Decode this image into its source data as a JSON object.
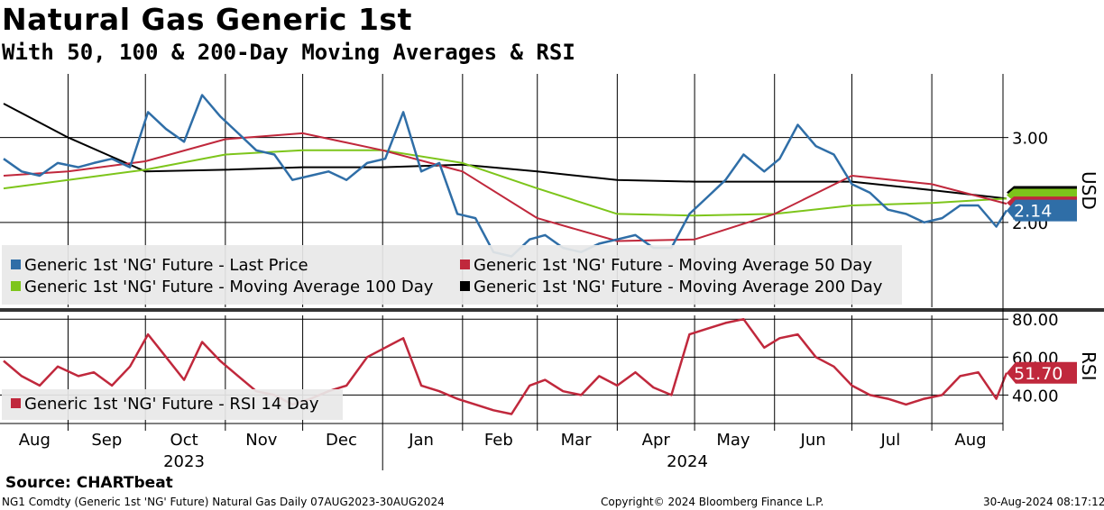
{
  "header": {
    "title": "Natural Gas Generic 1st",
    "subtitle": "With 50, 100 & 200-Day Moving Averages & RSI"
  },
  "chart_data": [
    {
      "type": "line",
      "ylabel": "USD",
      "ylim": [
        1.0,
        3.75
      ],
      "yticks": [
        3.0,
        2.0
      ],
      "ytick_labels": [
        "3.00",
        "2.00"
      ],
      "grid": true,
      "legend_position": "bottom-left",
      "last_value_label": "2.14",
      "x_months": [
        "Aug",
        "Sep",
        "Oct",
        "Nov",
        "Dec",
        "Jan",
        "Feb",
        "Mar",
        "Apr",
        "May",
        "Jun",
        "Jul",
        "Aug"
      ],
      "x_years": [
        "2023",
        "2024"
      ],
      "series": [
        {
          "name": "Generic 1st 'NG' Future - Last Price",
          "color": "#2f6ea7",
          "x": [
            "2023-08-07",
            "2023-08-14",
            "2023-08-21",
            "2023-08-28",
            "2023-09-05",
            "2023-09-11",
            "2023-09-18",
            "2023-09-25",
            "2023-10-02",
            "2023-10-09",
            "2023-10-16",
            "2023-10-23",
            "2023-10-30",
            "2023-11-06",
            "2023-11-13",
            "2023-11-20",
            "2023-11-27",
            "2023-12-04",
            "2023-12-11",
            "2023-12-18",
            "2023-12-26",
            "2024-01-02",
            "2024-01-09",
            "2024-01-16",
            "2024-01-23",
            "2024-01-30",
            "2024-02-06",
            "2024-02-13",
            "2024-02-20",
            "2024-02-27",
            "2024-03-04",
            "2024-03-11",
            "2024-03-18",
            "2024-03-25",
            "2024-04-01",
            "2024-04-08",
            "2024-04-15",
            "2024-04-22",
            "2024-04-29",
            "2024-05-06",
            "2024-05-13",
            "2024-05-20",
            "2024-05-28",
            "2024-06-03",
            "2024-06-10",
            "2024-06-17",
            "2024-06-24",
            "2024-07-01",
            "2024-07-08",
            "2024-07-15",
            "2024-07-22",
            "2024-07-29",
            "2024-08-05",
            "2024-08-12",
            "2024-08-19",
            "2024-08-26",
            "2024-08-30"
          ],
          "values": [
            2.75,
            2.6,
            2.55,
            2.7,
            2.65,
            2.7,
            2.75,
            2.65,
            3.3,
            3.1,
            2.95,
            3.5,
            3.25,
            3.05,
            2.85,
            2.8,
            2.5,
            2.55,
            2.6,
            2.5,
            2.7,
            2.75,
            3.3,
            2.6,
            2.7,
            2.1,
            2.05,
            1.65,
            1.6,
            1.8,
            1.85,
            1.7,
            1.65,
            1.75,
            1.8,
            1.85,
            1.7,
            1.7,
            2.1,
            2.3,
            2.5,
            2.8,
            2.6,
            2.75,
            3.15,
            2.9,
            2.8,
            2.45,
            2.35,
            2.15,
            2.1,
            2.0,
            2.05,
            2.2,
            2.2,
            1.95,
            2.14
          ]
        },
        {
          "name": "Generic 1st 'NG' Future - Moving Average 50 Day",
          "color": "#c0283c",
          "x": [
            "2023-08-07",
            "2023-09-01",
            "2023-10-01",
            "2023-11-01",
            "2023-12-01",
            "2024-01-01",
            "2024-02-01",
            "2024-03-01",
            "2024-04-01",
            "2024-05-01",
            "2024-06-01",
            "2024-07-01",
            "2024-08-01",
            "2024-08-30"
          ],
          "values": [
            2.55,
            2.6,
            2.72,
            2.98,
            3.05,
            2.85,
            2.6,
            2.05,
            1.78,
            1.8,
            2.1,
            2.55,
            2.45,
            2.22
          ]
        },
        {
          "name": "Generic 1st 'NG' Future - Moving Average 100 Day",
          "color": "#7dc51b",
          "x": [
            "2023-08-07",
            "2023-09-01",
            "2023-10-01",
            "2023-11-01",
            "2023-12-01",
            "2024-01-01",
            "2024-02-01",
            "2024-03-01",
            "2024-04-01",
            "2024-05-01",
            "2024-06-01",
            "2024-07-01",
            "2024-08-01",
            "2024-08-30"
          ],
          "values": [
            2.4,
            2.5,
            2.62,
            2.8,
            2.85,
            2.85,
            2.7,
            2.4,
            2.1,
            2.08,
            2.1,
            2.2,
            2.23,
            2.28
          ]
        },
        {
          "name": "Generic 1st 'NG' Future - Moving Average 200 Day",
          "color": "#000000",
          "x": [
            "2023-08-07",
            "2023-09-01",
            "2023-10-01",
            "2023-11-01",
            "2023-12-01",
            "2024-01-01",
            "2024-02-01",
            "2024-03-01",
            "2024-04-01",
            "2024-05-01",
            "2024-06-01",
            "2024-07-01",
            "2024-08-01",
            "2024-08-30"
          ],
          "values": [
            3.4,
            3.0,
            2.6,
            2.62,
            2.65,
            2.65,
            2.68,
            2.6,
            2.5,
            2.48,
            2.48,
            2.48,
            2.38,
            2.28
          ]
        }
      ]
    },
    {
      "type": "line",
      "ylabel": "RSI",
      "ylim": [
        25,
        82
      ],
      "yticks": [
        80,
        60,
        40
      ],
      "ytick_labels": [
        "80.00",
        "60.00",
        "40.00"
      ],
      "grid": true,
      "legend_position": "bottom-left",
      "last_value_label": "51.70",
      "series": [
        {
          "name": "Generic 1st 'NG' Future - RSI 14 Day",
          "color": "#c0283c",
          "x": [
            "2023-08-07",
            "2023-08-14",
            "2023-08-21",
            "2023-08-28",
            "2023-09-05",
            "2023-09-11",
            "2023-09-18",
            "2023-09-25",
            "2023-10-02",
            "2023-10-09",
            "2023-10-16",
            "2023-10-23",
            "2023-10-30",
            "2023-11-06",
            "2023-11-13",
            "2023-11-20",
            "2023-11-27",
            "2023-12-04",
            "2023-12-11",
            "2023-12-18",
            "2023-12-26",
            "2024-01-02",
            "2024-01-09",
            "2024-01-16",
            "2024-01-23",
            "2024-01-30",
            "2024-02-06",
            "2024-02-13",
            "2024-02-20",
            "2024-02-27",
            "2024-03-04",
            "2024-03-11",
            "2024-03-18",
            "2024-03-25",
            "2024-04-01",
            "2024-04-08",
            "2024-04-15",
            "2024-04-22",
            "2024-04-29",
            "2024-05-06",
            "2024-05-13",
            "2024-05-20",
            "2024-05-28",
            "2024-06-03",
            "2024-06-10",
            "2024-06-17",
            "2024-06-24",
            "2024-07-01",
            "2024-07-08",
            "2024-07-15",
            "2024-07-22",
            "2024-07-29",
            "2024-08-05",
            "2024-08-12",
            "2024-08-19",
            "2024-08-26",
            "2024-08-30"
          ],
          "values": [
            58,
            50,
            45,
            55,
            50,
            52,
            45,
            55,
            72,
            60,
            48,
            68,
            58,
            50,
            42,
            40,
            35,
            38,
            42,
            45,
            60,
            65,
            70,
            45,
            42,
            38,
            35,
            32,
            30,
            45,
            48,
            42,
            40,
            50,
            45,
            52,
            44,
            40,
            72,
            75,
            78,
            80,
            65,
            70,
            72,
            60,
            55,
            45,
            40,
            38,
            35,
            38,
            40,
            50,
            52,
            38,
            51.7
          ]
        }
      ]
    }
  ],
  "source": "Source: CHARTbeat",
  "footer": {
    "left": "NG1 Comdty (Generic 1st 'NG' Future) Natural Gas  Daily 07AUG2023-30AUG2024",
    "center": "Copyright© 2024 Bloomberg Finance L.P.",
    "right": "30-Aug-2024 08:17:12"
  }
}
